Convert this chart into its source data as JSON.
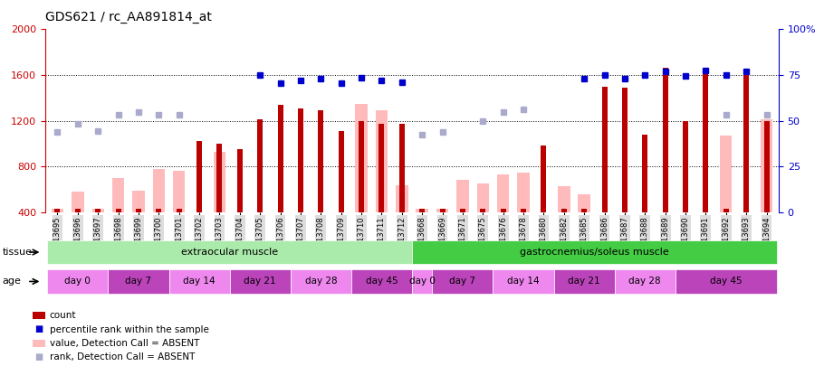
{
  "title": "GDS621 / rc_AA891814_at",
  "samples": [
    "GSM13695",
    "GSM13696",
    "GSM13697",
    "GSM13698",
    "GSM13699",
    "GSM13700",
    "GSM13701",
    "GSM13702",
    "GSM13703",
    "GSM13704",
    "GSM13705",
    "GSM13706",
    "GSM13707",
    "GSM13708",
    "GSM13709",
    "GSM13710",
    "GSM13711",
    "GSM13712",
    "GSM13668",
    "GSM13669",
    "GSM13671",
    "GSM13675",
    "GSM13676",
    "GSM13678",
    "GSM13680",
    "GSM13682",
    "GSM13685",
    "GSM13686",
    "GSM13687",
    "GSM13688",
    "GSM13689",
    "GSM13690",
    "GSM13691",
    "GSM13692",
    "GSM13693",
    "GSM13694"
  ],
  "count": [
    430,
    430,
    430,
    430,
    430,
    430,
    430,
    1020,
    1000,
    950,
    1210,
    1340,
    1310,
    1290,
    1110,
    1200,
    1170,
    1170,
    430,
    430,
    430,
    430,
    430,
    430,
    980,
    430,
    430,
    1500,
    1490,
    1080,
    1660,
    1200,
    1650,
    430,
    1600,
    1200
  ],
  "value_absent": [
    430,
    580,
    430,
    700,
    590,
    780,
    760,
    null,
    930,
    null,
    null,
    null,
    null,
    null,
    null,
    1350,
    1290,
    640,
    430,
    430,
    680,
    650,
    730,
    750,
    null,
    630,
    560,
    null,
    null,
    null,
    null,
    null,
    null,
    1070,
    null,
    1210
  ],
  "percentile_rank": [
    null,
    null,
    null,
    null,
    null,
    null,
    null,
    null,
    null,
    null,
    1600,
    1530,
    1550,
    1570,
    1530,
    1580,
    1550,
    1540,
    null,
    null,
    null,
    null,
    null,
    null,
    null,
    null,
    1570,
    1600,
    1570,
    1600,
    1630,
    1590,
    1640,
    1600,
    1630,
    null
  ],
  "rank_absent": [
    1100,
    1170,
    1110,
    1250,
    1280,
    1250,
    1250,
    null,
    null,
    null,
    null,
    null,
    null,
    null,
    null,
    null,
    null,
    null,
    1080,
    1100,
    null,
    1200,
    1280,
    1300,
    null,
    null,
    null,
    null,
    null,
    null,
    null,
    null,
    null,
    1250,
    null,
    1250
  ],
  "ylim_left": [
    400,
    2000
  ],
  "yticks_left": [
    400,
    800,
    1200,
    1600,
    2000
  ],
  "yticks_right": [
    0,
    25,
    50,
    75,
    100
  ],
  "tissue_groups": [
    {
      "label": "extraocular muscle",
      "start": 0,
      "end": 18,
      "color": "#aaeaaa"
    },
    {
      "label": "gastrocnemius/soleus muscle",
      "start": 18,
      "end": 36,
      "color": "#44cc44"
    }
  ],
  "age_groups": [
    {
      "label": "day 0",
      "start": 0,
      "end": 3,
      "color": "#ee88ee"
    },
    {
      "label": "day 7",
      "start": 3,
      "end": 6,
      "color": "#bb44bb"
    },
    {
      "label": "day 14",
      "start": 6,
      "end": 9,
      "color": "#ee88ee"
    },
    {
      "label": "day 21",
      "start": 9,
      "end": 12,
      "color": "#bb44bb"
    },
    {
      "label": "day 28",
      "start": 12,
      "end": 15,
      "color": "#ee88ee"
    },
    {
      "label": "day 45",
      "start": 15,
      "end": 18,
      "color": "#bb44bb"
    },
    {
      "label": "day 0",
      "start": 18,
      "end": 19,
      "color": "#ee88ee"
    },
    {
      "label": "day 7",
      "start": 19,
      "end": 22,
      "color": "#bb44bb"
    },
    {
      "label": "day 14",
      "start": 22,
      "end": 25,
      "color": "#ee88ee"
    },
    {
      "label": "day 21",
      "start": 25,
      "end": 28,
      "color": "#bb44bb"
    },
    {
      "label": "day 28",
      "start": 28,
      "end": 31,
      "color": "#ee88ee"
    },
    {
      "label": "day 45",
      "start": 31,
      "end": 36,
      "color": "#bb44bb"
    }
  ],
  "bar_color_dark_red": "#bb0000",
  "bar_color_pink": "#ffbbbb",
  "dot_color_blue": "#0000cc",
  "dot_color_light_blue": "#aaaacc",
  "background_color": "#ffffff",
  "left_axis_color": "#cc0000",
  "right_axis_color": "#0000cc",
  "xticklabel_bg": "#dddddd",
  "title_fontsize": 10,
  "tick_fontsize": 6,
  "legend_fontsize": 7.5
}
